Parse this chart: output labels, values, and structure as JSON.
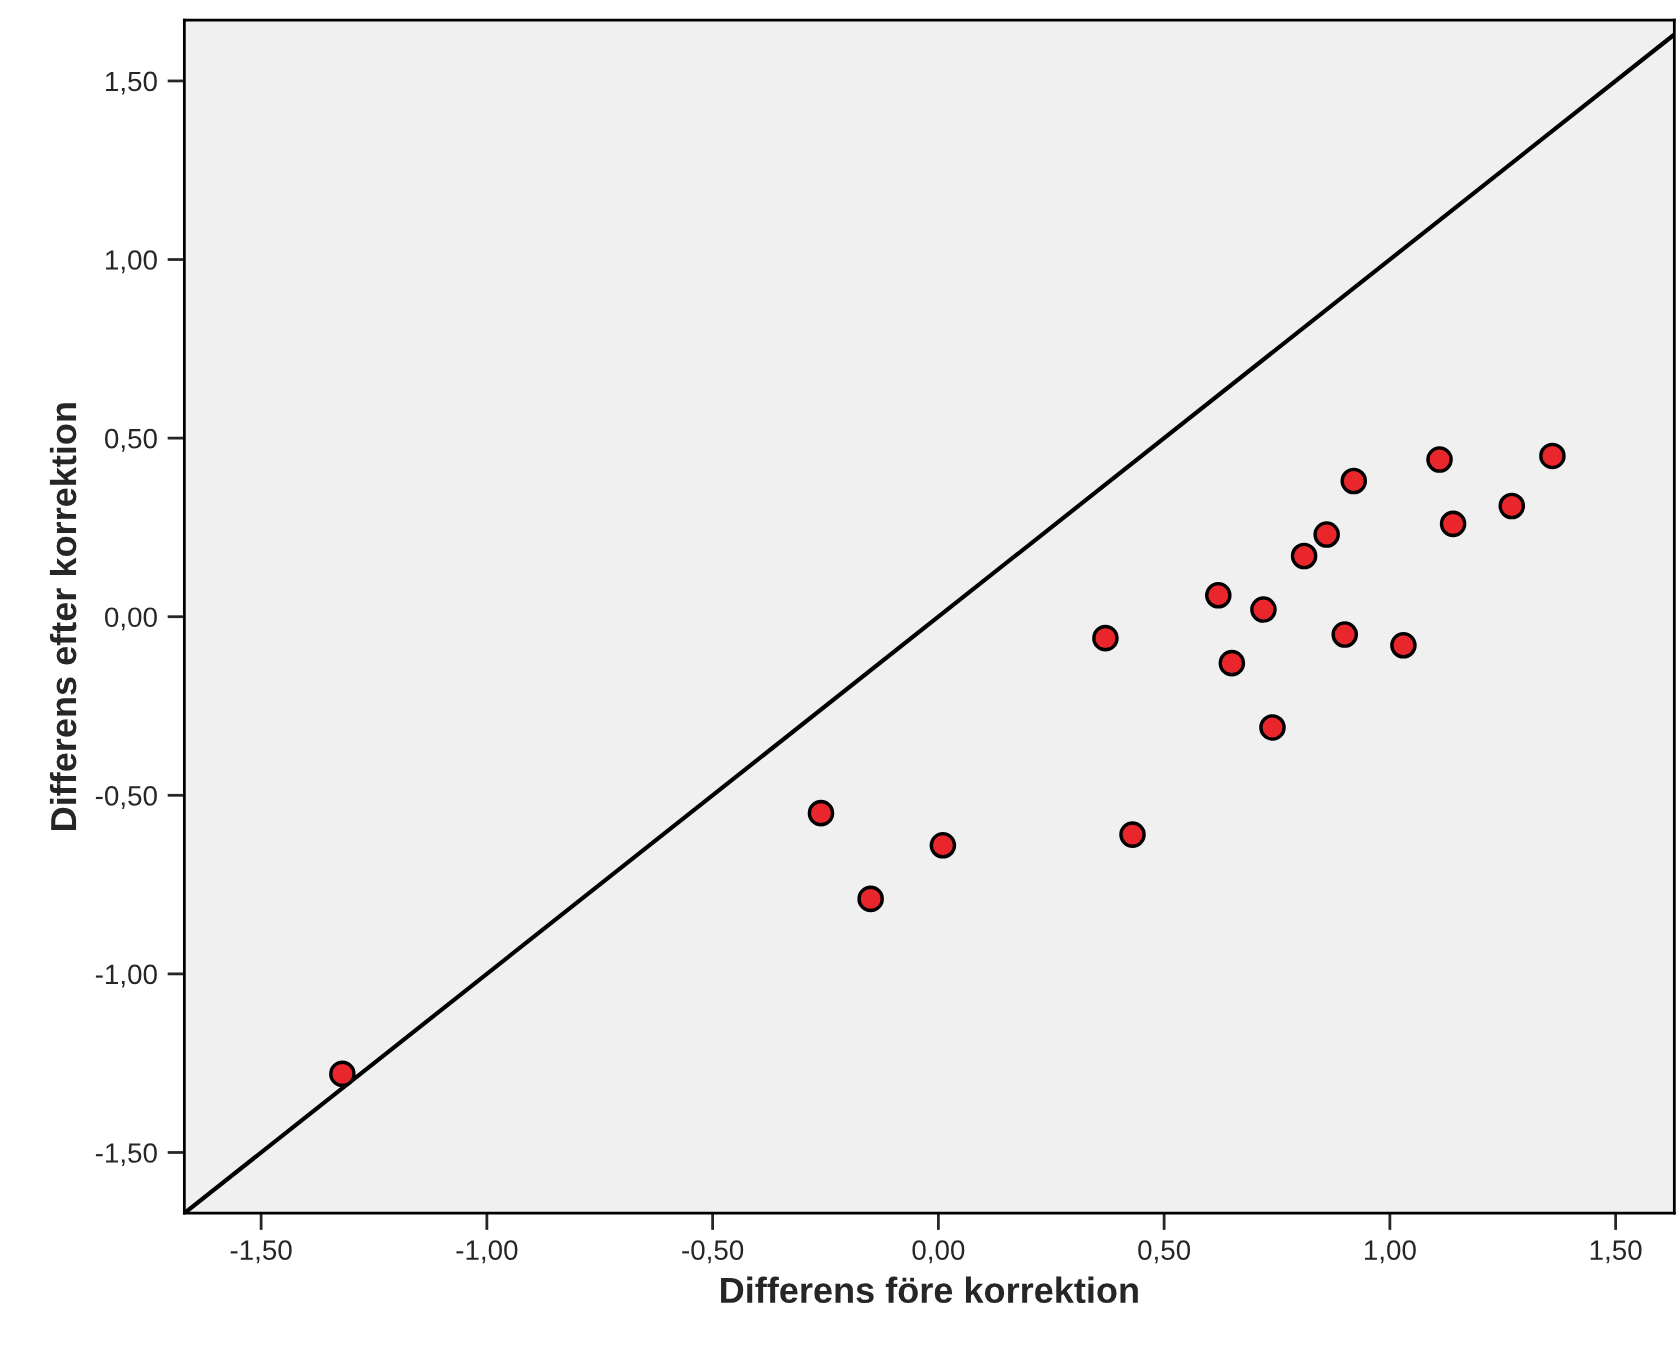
{
  "chart_data": {
    "type": "scatter",
    "xlabel": "Differens före korrektion",
    "ylabel": "Differens efter korrektion",
    "xlim": [
      -1.67,
      1.63
    ],
    "ylim": [
      -1.67,
      1.67
    ],
    "xticks": [
      {
        "value": -1.5,
        "label": "-1,50"
      },
      {
        "value": -1,
        "label": "-1,00"
      },
      {
        "value": -0.5,
        "label": "-0,50"
      },
      {
        "value": 0,
        "label": "0,00"
      },
      {
        "value": 0.5,
        "label": "0,50"
      },
      {
        "value": 1,
        "label": "1,00"
      },
      {
        "value": 1.5,
        "label": "1,50"
      }
    ],
    "yticks": [
      {
        "value": -1.5,
        "label": "-1,50"
      },
      {
        "value": -1,
        "label": "-1,00"
      },
      {
        "value": -0.5,
        "label": "-0,50"
      },
      {
        "value": 0,
        "label": "0,00"
      },
      {
        "value": 0.5,
        "label": "0,50"
      },
      {
        "value": 1,
        "label": "1,00"
      },
      {
        "value": 1.5,
        "label": "1,50"
      }
    ],
    "grid": false,
    "legend": false,
    "marker": "circle",
    "series": [
      {
        "color": "#e8262b",
        "x": [
          -1.32,
          -0.26,
          -0.15,
          0.01,
          0.37,
          0.43,
          0.62,
          0.65,
          0.72,
          0.74,
          0.81,
          0.86,
          0.92,
          0.9,
          1.03,
          1.11,
          1.14,
          1.27,
          1.36
        ],
        "values": [
          -1.28,
          -0.55,
          -0.79,
          -0.64,
          -0.06,
          -0.61,
          0.06,
          -0.13,
          0.02,
          -0.31,
          0.17,
          0.23,
          0.38,
          -0.05,
          -0.08,
          0.44,
          0.26,
          0.31,
          0.45
        ]
      },
      {
        "type": "line",
        "color": "#000000",
        "marker": "none",
        "x": [
          -1.67,
          1.63
        ],
        "values": [
          -1.67,
          1.63
        ]
      }
    ]
  }
}
